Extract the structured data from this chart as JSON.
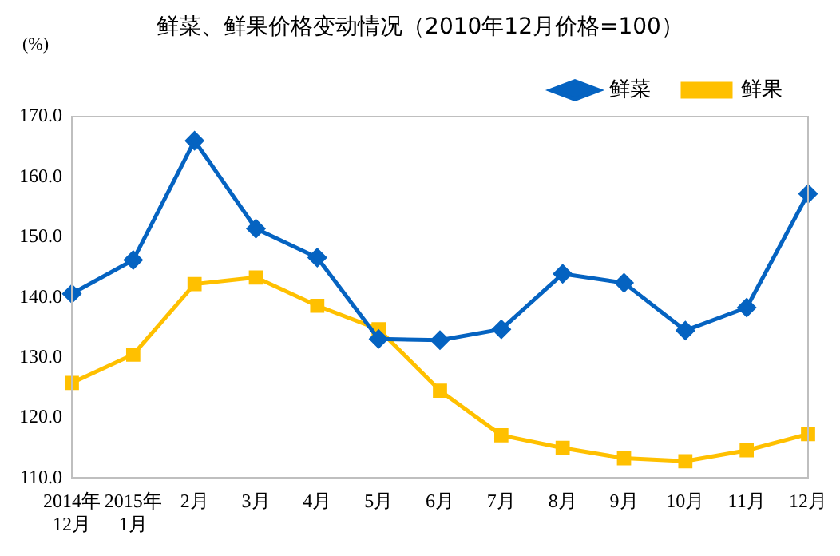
{
  "chart_data": {
    "type": "line",
    "title": "鲜菜、鲜果价格变动情况（2010年12月价格=100）",
    "ylabel": "(%)",
    "categories": [
      "2014年\n12月",
      "2015年\n1月",
      "2月",
      "3月",
      "4月",
      "5月",
      "6月",
      "7月",
      "8月",
      "9月",
      "10月",
      "11月",
      "12月"
    ],
    "series": [
      {
        "name": "鲜菜",
        "color": "#0563c1",
        "marker": "diamond",
        "values": [
          140.6,
          146.2,
          166.0,
          151.4,
          146.6,
          133.1,
          132.9,
          134.7,
          143.9,
          142.4,
          134.5,
          138.3,
          157.2
        ]
      },
      {
        "name": "鲜果",
        "color": "#ffc000",
        "marker": "square",
        "values": [
          125.8,
          130.5,
          142.2,
          143.3,
          138.6,
          134.7,
          124.5,
          117.1,
          115.0,
          113.3,
          112.8,
          114.6,
          117.3
        ]
      }
    ],
    "ylim": [
      110,
      170
    ],
    "yticks": [
      {
        "value": 110,
        "label": "110.0"
      },
      {
        "value": 120,
        "label": "120.0"
      },
      {
        "value": 130,
        "label": "130.0"
      },
      {
        "value": 140,
        "label": "140.0"
      },
      {
        "value": 150,
        "label": "150.0"
      },
      {
        "value": 160,
        "label": "160.0"
      },
      {
        "value": 170,
        "label": "170.0"
      }
    ],
    "grid": false,
    "legend": "top right",
    "line_style": "solid"
  }
}
